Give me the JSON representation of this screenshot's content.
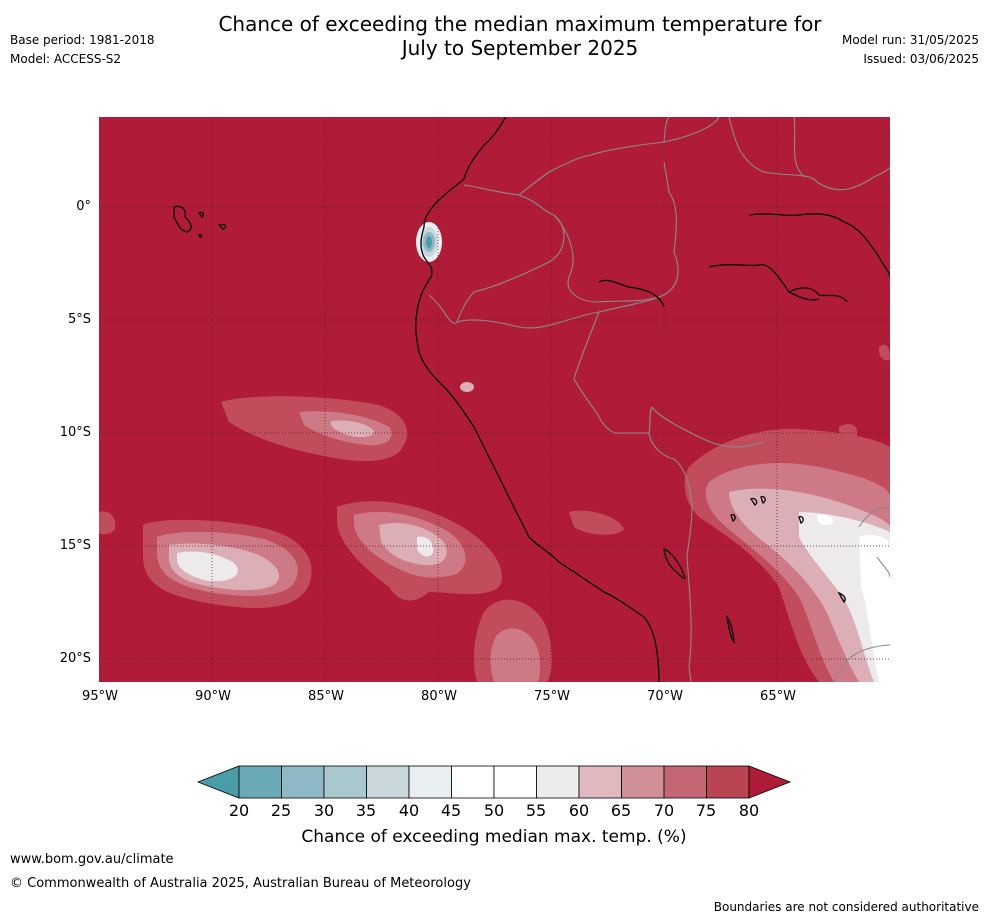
{
  "header": {
    "title_line1": "Chance of exceeding the median maximum temperature for",
    "title_line2": "July to September 2025",
    "base_period": "Base period: 1981-2018",
    "model": "Model: ACCESS-S2",
    "model_run": "Model run: 31/05/2025",
    "issued": "Issued: 03/06/2025"
  },
  "map": {
    "lat_labels": [
      "0°",
      "5°S",
      "10°S",
      "15°S",
      "20°S"
    ],
    "lon_labels": [
      "95°W",
      "90°W",
      "85°W",
      "80°W",
      "75°W",
      "70°W",
      "65°W"
    ]
  },
  "colorbar": {
    "ticks": [
      "20",
      "25",
      "30",
      "35",
      "40",
      "45",
      "50",
      "55",
      "60",
      "65",
      "70",
      "75",
      "80"
    ],
    "colors": [
      "#6aaab6",
      "#8cb9c3",
      "#a9c8cd",
      "#c9d7dc",
      "#e9eef0",
      "#ffffff",
      "#ffffff",
      "#ececec",
      "#e0b9bf",
      "#d18f98",
      "#c46673",
      "#b94452"
    ],
    "under_color": "#4a9ca9",
    "over_color": "#b01c38",
    "title": "Chance of exceeding median max. temp. (%)"
  },
  "footer": {
    "url": "www.bom.gov.au/climate",
    "copyright": "© Commonwealth of Australia 2025, Australian Bureau of Meteorology",
    "disclaimer": "Boundaries are not considered authoritative"
  }
}
